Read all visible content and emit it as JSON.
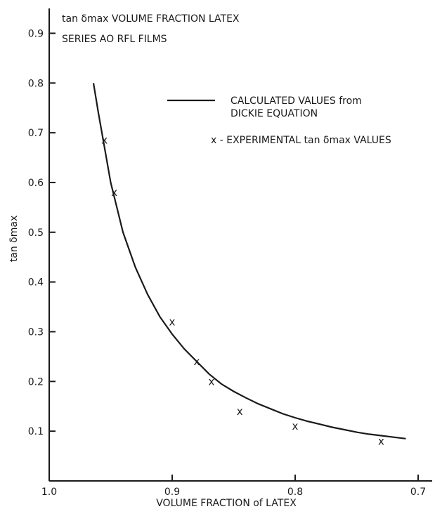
{
  "chart_data": {
    "type": "line",
    "title_line1": "tan δmax VOLUME FRACTION LATEX",
    "title_line2": "SERIES AO RFL FILMS",
    "xlabel": "VOLUME FRACTION of LATEX",
    "ylabel": "tan δmax",
    "xlim": [
      1.0,
      0.7
    ],
    "ylim": [
      0,
      0.95
    ],
    "x_reversed": true,
    "grid": false,
    "x_ticks": [
      "1.0",
      "0.9",
      "0.8",
      "0.7"
    ],
    "y_ticks": [
      "0.1",
      "0.2",
      "0.3",
      "0.4",
      "0.5",
      "0.6",
      "0.7",
      "0.8",
      "0.9"
    ],
    "legend": {
      "placement": "top-right",
      "line_label_1": "CALCULATED VALUES from",
      "line_label_2": "DICKIE EQUATION",
      "marker_label": "x - EXPERIMENTAL tan δmax VALUES"
    },
    "series": [
      {
        "name": "CALCULATED VALUES from DICKIE EQUATION",
        "style": "line",
        "x": [
          0.964,
          0.96,
          0.955,
          0.95,
          0.945,
          0.94,
          0.93,
          0.92,
          0.91,
          0.9,
          0.89,
          0.88,
          0.87,
          0.86,
          0.85,
          0.84,
          0.83,
          0.82,
          0.81,
          0.8,
          0.79,
          0.78,
          0.77,
          0.76,
          0.75,
          0.74,
          0.73,
          0.72,
          0.71
        ],
        "y": [
          0.8,
          0.74,
          0.67,
          0.6,
          0.55,
          0.5,
          0.43,
          0.375,
          0.33,
          0.295,
          0.265,
          0.24,
          0.215,
          0.195,
          0.18,
          0.167,
          0.155,
          0.145,
          0.135,
          0.127,
          0.12,
          0.114,
          0.108,
          0.103,
          0.098,
          0.094,
          0.091,
          0.088,
          0.085
        ]
      },
      {
        "name": "EXPERIMENTAL tan δmax VALUES",
        "style": "marker",
        "marker": "x",
        "x": [
          0.955,
          0.947,
          0.9,
          0.88,
          0.868,
          0.845,
          0.8,
          0.73
        ],
        "y": [
          0.685,
          0.58,
          0.32,
          0.24,
          0.2,
          0.14,
          0.11,
          0.08
        ]
      }
    ]
  }
}
